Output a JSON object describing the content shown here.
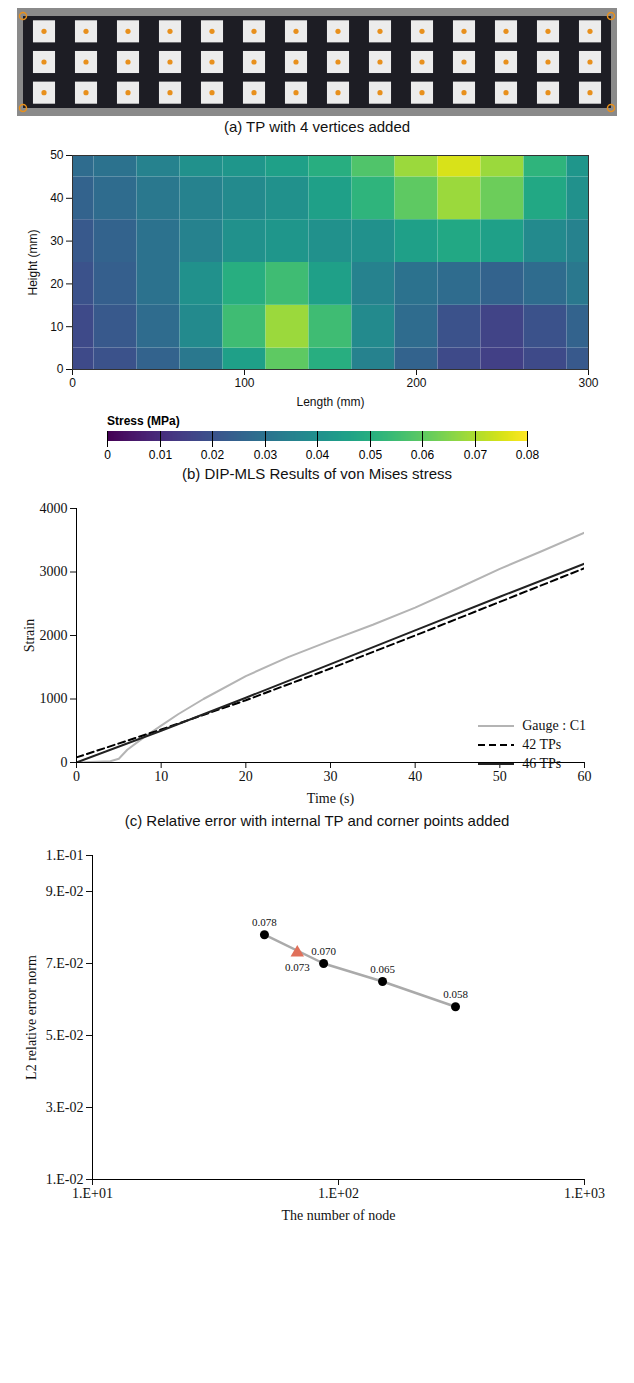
{
  "photo": {
    "title": "(a) TP with 4 vertices added",
    "rows": 3,
    "columns": 14,
    "vertices": 4
  },
  "chart_data": [
    {
      "type": "heatmap",
      "title": "(b) DIP-MLS Results of von Mises stress",
      "x_label": "Length (mm)",
      "y_label": "Height (mm)",
      "xlim": [
        0,
        300
      ],
      "xticks": [
        0,
        100,
        200,
        300
      ],
      "ylim": [
        0,
        50
      ],
      "yticks": [
        0,
        10,
        20,
        30,
        40,
        50
      ],
      "x": [
        0,
        25,
        50,
        75,
        100,
        125,
        150,
        175,
        200,
        225,
        250,
        275,
        300
      ],
      "y": [
        0,
        10,
        20,
        30,
        40,
        50
      ],
      "values": [
        [
          0.018,
          0.02,
          0.025,
          0.032,
          0.045,
          0.06,
          0.05,
          0.035,
          0.025,
          0.018,
          0.015,
          0.018,
          0.022
        ],
        [
          0.018,
          0.022,
          0.028,
          0.038,
          0.055,
          0.068,
          0.055,
          0.038,
          0.028,
          0.02,
          0.016,
          0.02,
          0.025
        ],
        [
          0.02,
          0.024,
          0.03,
          0.04,
          0.05,
          0.055,
          0.045,
          0.035,
          0.03,
          0.028,
          0.025,
          0.028,
          0.032
        ],
        [
          0.022,
          0.025,
          0.03,
          0.035,
          0.04,
          0.042,
          0.04,
          0.04,
          0.045,
          0.048,
          0.045,
          0.038,
          0.035
        ],
        [
          0.025,
          0.028,
          0.032,
          0.035,
          0.038,
          0.04,
          0.045,
          0.052,
          0.06,
          0.068,
          0.062,
          0.048,
          0.04
        ],
        [
          0.028,
          0.03,
          0.035,
          0.04,
          0.042,
          0.045,
          0.05,
          0.058,
          0.068,
          0.075,
          0.068,
          0.052,
          0.042
        ]
      ],
      "colorbar": {
        "label": "Stress (MPa)",
        "range": [
          0,
          0.08
        ],
        "ticks": [
          0,
          0.01,
          0.02,
          0.03,
          0.04,
          0.05,
          0.06,
          0.07,
          0.08
        ]
      }
    },
    {
      "type": "line",
      "title": "(c) Relative error with internal TP and corner points added",
      "x_label": "Time (s)",
      "y_label": "Strain",
      "xlim": [
        0,
        60
      ],
      "xticks": [
        0,
        10,
        20,
        30,
        40,
        50,
        60
      ],
      "ylim": [
        0,
        4000
      ],
      "yticks": [
        0,
        1000,
        2000,
        3000,
        4000
      ],
      "legend": "lower right",
      "grid": false,
      "series": [
        {
          "name": "Gauge : C1",
          "color": "#b4b4b4",
          "line_style": "solid",
          "x": [
            0,
            4,
            5,
            6,
            8,
            10,
            12,
            15,
            20,
            25,
            30,
            35,
            40,
            45,
            50,
            55,
            60
          ],
          "values": [
            0,
            20,
            60,
            200,
            400,
            580,
            760,
            1000,
            1360,
            1660,
            1920,
            2170,
            2440,
            2740,
            3050,
            3330,
            3620
          ]
        },
        {
          "name": "42 TPs",
          "color": "#000000",
          "line_style": "dashed",
          "x": [
            0,
            10,
            20,
            30,
            40,
            50,
            60
          ],
          "values": [
            80,
            520,
            980,
            1480,
            2000,
            2530,
            3060
          ]
        },
        {
          "name": "46 TPs",
          "color": "#222222",
          "line_style": "solid",
          "x": [
            0,
            10,
            20,
            30,
            40,
            50,
            60
          ],
          "values": [
            0,
            500,
            1020,
            1550,
            2080,
            2610,
            3130
          ]
        }
      ]
    },
    {
      "type": "line",
      "x_label": "The number of node",
      "y_label": "L2 relative error norm",
      "log": "x",
      "data_labels": true,
      "grid": false,
      "xlim": [
        10,
        1000
      ],
      "xticks": [
        {
          "value": 10,
          "label": "1.E+01"
        },
        {
          "value": 100,
          "label": "1.E+02"
        },
        {
          "value": 1000,
          "label": "1.E+03"
        }
      ],
      "ylim": [
        0.01,
        0.1
      ],
      "yticks": [
        {
          "value": 0.01,
          "label": "1.E-02"
        },
        {
          "value": 0.03,
          "label": "3.E-02"
        },
        {
          "value": 0.05,
          "label": "5.E-02"
        },
        {
          "value": 0.07,
          "label": "7.E-02"
        },
        {
          "value": 0.09,
          "label": "9.E-02"
        },
        {
          "value": 0.1,
          "label": "1.E-01"
        }
      ],
      "series": [
        {
          "type": "line",
          "color": "#000000",
          "marker": "circle",
          "x": [
            50,
            87,
            151,
            299
          ],
          "values": [
            0.078,
            0.07,
            0.065,
            0.058
          ],
          "value_labels": [
            "0.078",
            "0.070",
            "0.065",
            "0.058"
          ]
        },
        {
          "type": "scatter",
          "color": "#e0705a",
          "marker": "triangle",
          "x": [
            68
          ],
          "values": [
            0.073
          ],
          "value_labels": [
            "0.073"
          ]
        }
      ]
    }
  ]
}
